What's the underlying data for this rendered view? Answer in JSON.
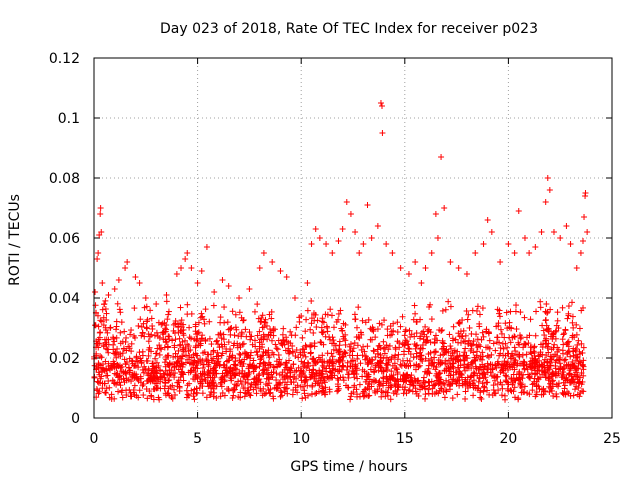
{
  "chart_data": {
    "type": "scatter",
    "title": "Day 023 of 2018, Rate Of TEC Index for receiver p023",
    "xlabel": "GPS time / hours",
    "ylabel": "ROTI / TECUs",
    "xlim": [
      0,
      25
    ],
    "ylim": [
      0,
      0.12
    ],
    "xticks": [
      0,
      5,
      10,
      15,
      20,
      25
    ],
    "yticks": [
      0,
      0.02,
      0.04,
      0.06,
      0.08,
      0.1,
      0.12
    ],
    "xtick_labels": [
      "0",
      "5",
      "10",
      "15",
      "20",
      "25"
    ],
    "ytick_labels": [
      "0",
      "0.02",
      "0.04",
      "0.06",
      "0.08",
      "0.1",
      "0.12"
    ],
    "grid": true,
    "marker": "+",
    "color": "#ff0000",
    "series": [
      {
        "points": [
          [
            0.05,
            0.042
          ],
          [
            0.1,
            0.035
          ],
          [
            0.15,
            0.053
          ],
          [
            0.2,
            0.055
          ],
          [
            0.25,
            0.061
          ],
          [
            0.3,
            0.068
          ],
          [
            0.32,
            0.07
          ],
          [
            0.35,
            0.062
          ],
          [
            0.4,
            0.045
          ],
          [
            0.5,
            0.038
          ],
          [
            0.7,
            0.041
          ],
          [
            1.0,
            0.043
          ],
          [
            1.2,
            0.046
          ],
          [
            1.5,
            0.05
          ],
          [
            1.6,
            0.052
          ],
          [
            2.0,
            0.047
          ],
          [
            2.2,
            0.045
          ],
          [
            2.5,
            0.04
          ],
          [
            3.0,
            0.038
          ],
          [
            3.5,
            0.041
          ],
          [
            4.0,
            0.048
          ],
          [
            4.2,
            0.05
          ],
          [
            4.4,
            0.053
          ],
          [
            4.5,
            0.055
          ],
          [
            4.7,
            0.05
          ],
          [
            5.0,
            0.045
          ],
          [
            5.2,
            0.049
          ],
          [
            5.45,
            0.057
          ],
          [
            5.8,
            0.042
          ],
          [
            6.2,
            0.046
          ],
          [
            6.5,
            0.044
          ],
          [
            7.0,
            0.04
          ],
          [
            7.5,
            0.043
          ],
          [
            8.0,
            0.05
          ],
          [
            8.2,
            0.055
          ],
          [
            8.6,
            0.052
          ],
          [
            9.0,
            0.049
          ],
          [
            9.3,
            0.047
          ],
          [
            9.7,
            0.04
          ],
          [
            10.0,
            0.034
          ],
          [
            10.3,
            0.045
          ],
          [
            10.5,
            0.058
          ],
          [
            10.7,
            0.063
          ],
          [
            10.9,
            0.06
          ],
          [
            11.2,
            0.058
          ],
          [
            11.5,
            0.055
          ],
          [
            11.8,
            0.059
          ],
          [
            12.0,
            0.063
          ],
          [
            12.2,
            0.072
          ],
          [
            12.4,
            0.068
          ],
          [
            12.6,
            0.062
          ],
          [
            12.8,
            0.055
          ],
          [
            13.0,
            0.058
          ],
          [
            13.2,
            0.071
          ],
          [
            13.4,
            0.06
          ],
          [
            13.7,
            0.064
          ],
          [
            13.85,
            0.105
          ],
          [
            13.9,
            0.104
          ],
          [
            13.92,
            0.095
          ],
          [
            14.1,
            0.058
          ],
          [
            14.4,
            0.055
          ],
          [
            14.8,
            0.05
          ],
          [
            15.2,
            0.048
          ],
          [
            15.5,
            0.052
          ],
          [
            15.8,
            0.045
          ],
          [
            16.0,
            0.05
          ],
          [
            16.3,
            0.055
          ],
          [
            16.5,
            0.068
          ],
          [
            16.6,
            0.06
          ],
          [
            16.75,
            0.087
          ],
          [
            16.9,
            0.07
          ],
          [
            17.2,
            0.052
          ],
          [
            17.6,
            0.05
          ],
          [
            18.0,
            0.048
          ],
          [
            18.4,
            0.055
          ],
          [
            18.8,
            0.058
          ],
          [
            19.0,
            0.066
          ],
          [
            19.2,
            0.062
          ],
          [
            19.6,
            0.052
          ],
          [
            20.0,
            0.058
          ],
          [
            20.3,
            0.055
          ],
          [
            20.5,
            0.069
          ],
          [
            20.8,
            0.06
          ],
          [
            21.0,
            0.055
          ],
          [
            21.3,
            0.057
          ],
          [
            21.6,
            0.062
          ],
          [
            21.8,
            0.072
          ],
          [
            21.9,
            0.08
          ],
          [
            22.0,
            0.076
          ],
          [
            22.2,
            0.062
          ],
          [
            22.5,
            0.06
          ],
          [
            22.8,
            0.064
          ],
          [
            23.0,
            0.058
          ],
          [
            23.3,
            0.05
          ],
          [
            23.5,
            0.055
          ],
          [
            23.6,
            0.059
          ],
          [
            23.65,
            0.067
          ],
          [
            23.7,
            0.074
          ],
          [
            23.72,
            0.075
          ],
          [
            23.8,
            0.062
          ]
        ]
      }
    ]
  }
}
